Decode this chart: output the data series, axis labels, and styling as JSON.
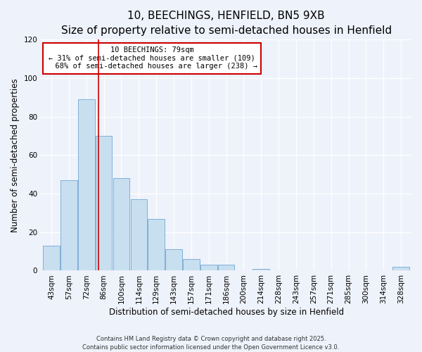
{
  "title": "10, BEECHINGS, HENFIELD, BN5 9XB",
  "subtitle": "Size of property relative to semi-detached houses in Henfield",
  "xlabel": "Distribution of semi-detached houses by size in Henfield",
  "ylabel": "Number of semi-detached properties",
  "categories": [
    "43sqm",
    "57sqm",
    "72sqm",
    "86sqm",
    "100sqm",
    "114sqm",
    "129sqm",
    "143sqm",
    "157sqm",
    "171sqm",
    "186sqm",
    "200sqm",
    "214sqm",
    "228sqm",
    "243sqm",
    "257sqm",
    "271sqm",
    "285sqm",
    "300sqm",
    "314sqm",
    "328sqm"
  ],
  "values": [
    13,
    47,
    89,
    70,
    48,
    37,
    27,
    11,
    6,
    3,
    3,
    0,
    1,
    0,
    0,
    0,
    0,
    0,
    0,
    0,
    2
  ],
  "bar_color": "#c8dff0",
  "bar_edge_color": "#7fb0d8",
  "vline_color": "#cc0000",
  "vline_x": 2.7,
  "ylim": [
    0,
    120
  ],
  "yticks": [
    0,
    20,
    40,
    60,
    80,
    100,
    120
  ],
  "annotation_box_color": "#ffffff",
  "annotation_box_edge": "#cc0000",
  "bg_color": "#eef2fb",
  "footer1": "Contains HM Land Registry data © Crown copyright and database right 2025.",
  "footer2": "Contains public sector information licensed under the Open Government Licence v3.0.",
  "title_fontsize": 11,
  "axis_label_fontsize": 8.5,
  "tick_fontsize": 7.5,
  "ann_fontsize": 7.5
}
